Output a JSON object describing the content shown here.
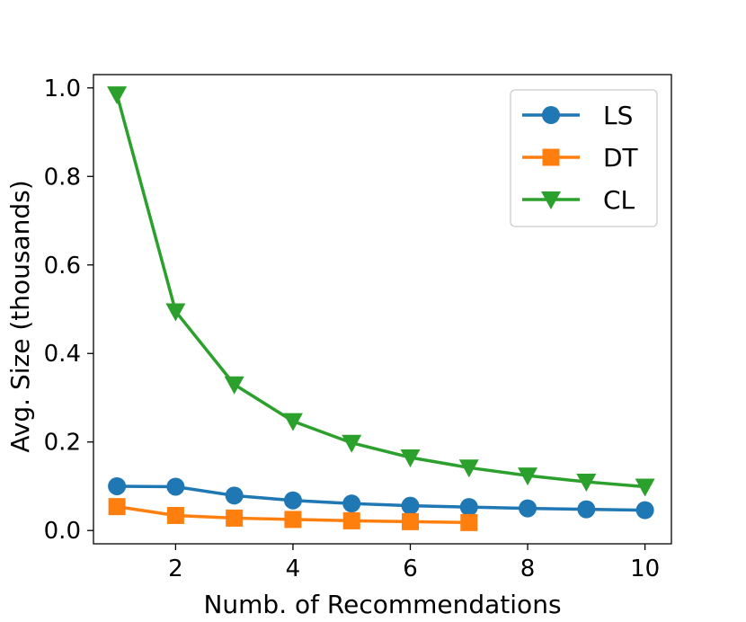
{
  "chart_data": {
    "type": "line",
    "title": "",
    "xlabel": "Numb. of Recommendations",
    "ylabel": "Avg. Size (thousands)",
    "xlim": [
      0.6,
      10.45
    ],
    "ylim": [
      -0.03,
      1.03
    ],
    "xticks": [
      2,
      4,
      6,
      8,
      10
    ],
    "yticks": [
      0.0,
      0.2,
      0.4,
      0.6,
      0.8,
      1.0
    ],
    "xtick_labels": [
      "2",
      "4",
      "6",
      "8",
      "10"
    ],
    "ytick_labels": [
      "0.0",
      "0.2",
      "0.4",
      "0.6",
      "0.8",
      "1.0"
    ],
    "legend_position": "top-right",
    "series": [
      {
        "name": "LS",
        "color": "#1f77b4",
        "marker": "circle",
        "x": [
          1,
          2,
          3,
          4,
          5,
          6,
          7,
          8,
          9,
          10
        ],
        "values": [
          0.1,
          0.099,
          0.079,
          0.068,
          0.061,
          0.056,
          0.053,
          0.05,
          0.048,
          0.046
        ]
      },
      {
        "name": "DT",
        "color": "#ff7f0e",
        "marker": "square",
        "x": [
          1,
          2,
          3,
          4,
          5,
          6,
          7
        ],
        "values": [
          0.054,
          0.034,
          0.028,
          0.025,
          0.022,
          0.02,
          0.018
        ]
      },
      {
        "name": "CL",
        "color": "#2ca02c",
        "marker": "triangle-down",
        "x": [
          1,
          2,
          3,
          4,
          5,
          6,
          7,
          8,
          9,
          10
        ],
        "values": [
          0.985,
          0.495,
          0.33,
          0.247,
          0.198,
          0.165,
          0.142,
          0.124,
          0.11,
          0.099
        ]
      }
    ]
  }
}
